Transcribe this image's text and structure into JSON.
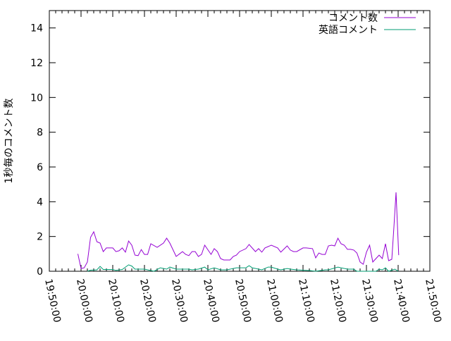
{
  "chart_data": {
    "type": "line",
    "title": "",
    "xlabel": "",
    "ylabel": "1秒毎のコメント数",
    "xlim": [
      "19:50:00",
      "21:50:00"
    ],
    "ylim": [
      0,
      15
    ],
    "x_ticks": [
      "19:50:00",
      "20:00:00",
      "20:10:00",
      "20:20:00",
      "20:30:00",
      "20:40:00",
      "20:50:00",
      "21:00:00",
      "21:10:00",
      "21:20:00",
      "21:30:00",
      "21:40:00",
      "21:50:00"
    ],
    "y_ticks": [
      "0",
      "2",
      "4",
      "6",
      "8",
      "10",
      "12",
      "14"
    ],
    "grid": false,
    "legend_position": "top-right",
    "series": [
      {
        "name": "コメント数",
        "color": "#9400d3",
        "points": [
          [
            "19:59:00",
            1.0
          ],
          [
            "20:00:00",
            0.16
          ],
          [
            "20:01:00",
            0.2
          ],
          [
            "20:02:00",
            0.53
          ],
          [
            "20:03:00",
            1.95
          ],
          [
            "20:04:00",
            2.27
          ],
          [
            "20:05:00",
            1.7
          ],
          [
            "20:06:00",
            1.62
          ],
          [
            "20:07:00",
            1.13
          ],
          [
            "20:08:00",
            1.34
          ],
          [
            "20:10:00",
            1.34
          ],
          [
            "20:11:00",
            1.13
          ],
          [
            "20:12:00",
            1.18
          ],
          [
            "20:13:00",
            1.34
          ],
          [
            "20:14:00",
            1.1
          ],
          [
            "20:15:00",
            1.74
          ],
          [
            "20:16:00",
            1.5
          ],
          [
            "20:17:00",
            0.93
          ],
          [
            "20:18:00",
            0.9
          ],
          [
            "20:19:00",
            1.25
          ],
          [
            "20:20:00",
            0.97
          ],
          [
            "20:21:00",
            0.97
          ],
          [
            "20:22:00",
            1.58
          ],
          [
            "20:24:00",
            1.38
          ],
          [
            "20:26:00",
            1.62
          ],
          [
            "20:27:00",
            1.9
          ],
          [
            "20:28:00",
            1.62
          ],
          [
            "20:30:00",
            0.85
          ],
          [
            "20:32:00",
            1.13
          ],
          [
            "20:33:00",
            0.97
          ],
          [
            "20:34:00",
            0.9
          ],
          [
            "20:35:00",
            1.13
          ],
          [
            "20:36:00",
            1.13
          ],
          [
            "20:37:00",
            0.85
          ],
          [
            "20:38:00",
            0.97
          ],
          [
            "20:39:00",
            1.5
          ],
          [
            "20:41:00",
            0.97
          ],
          [
            "20:42:00",
            1.3
          ],
          [
            "20:43:00",
            1.13
          ],
          [
            "20:44:00",
            0.73
          ],
          [
            "20:45:00",
            0.65
          ],
          [
            "20:47:00",
            0.65
          ],
          [
            "20:48:00",
            0.85
          ],
          [
            "20:49:00",
            0.93
          ],
          [
            "20:50:00",
            1.13
          ],
          [
            "20:52:00",
            1.3
          ],
          [
            "20:53:00",
            1.54
          ],
          [
            "20:55:00",
            1.13
          ],
          [
            "20:56:00",
            1.3
          ],
          [
            "20:57:00",
            1.1
          ],
          [
            "20:58:00",
            1.34
          ],
          [
            "21:00:00",
            1.5
          ],
          [
            "21:02:00",
            1.34
          ],
          [
            "21:03:00",
            1.1
          ],
          [
            "21:05:00",
            1.46
          ],
          [
            "21:06:00",
            1.22
          ],
          [
            "21:07:00",
            1.13
          ],
          [
            "21:08:00",
            1.13
          ],
          [
            "21:10:00",
            1.34
          ],
          [
            "21:11:00",
            1.34
          ],
          [
            "21:13:00",
            1.3
          ],
          [
            "21:14:00",
            0.77
          ],
          [
            "21:15:00",
            1.05
          ],
          [
            "21:16:00",
            0.97
          ],
          [
            "21:17:00",
            0.97
          ],
          [
            "21:18:00",
            1.46
          ],
          [
            "21:19:00",
            1.5
          ],
          [
            "21:20:00",
            1.46
          ],
          [
            "21:21:00",
            1.9
          ],
          [
            "21:22:00",
            1.58
          ],
          [
            "21:23:00",
            1.5
          ],
          [
            "21:24:00",
            1.26
          ],
          [
            "21:25:00",
            1.26
          ],
          [
            "21:26:00",
            1.22
          ],
          [
            "21:27:00",
            1.05
          ],
          [
            "21:28:00",
            0.53
          ],
          [
            "21:29:00",
            0.4
          ],
          [
            "21:30:00",
            1.1
          ],
          [
            "21:31:00",
            1.5
          ],
          [
            "21:32:00",
            0.53
          ],
          [
            "21:34:00",
            0.93
          ],
          [
            "21:35:00",
            0.73
          ],
          [
            "21:36:00",
            1.58
          ],
          [
            "21:37:00",
            0.61
          ],
          [
            "21:38:00",
            0.69
          ],
          [
            "21:38:40",
            2.55
          ],
          [
            "21:39:20",
            4.54
          ],
          [
            "21:40:10",
            0.93
          ]
        ]
      },
      {
        "name": "英語コメント",
        "color": "#009e73",
        "points": [
          [
            "20:02:00",
            0.0
          ],
          [
            "20:03:00",
            0.06
          ],
          [
            "20:05:00",
            0.08
          ],
          [
            "20:06:00",
            0.28
          ],
          [
            "20:07:00",
            0.1
          ],
          [
            "20:10:00",
            0.1
          ],
          [
            "20:11:00",
            0.05
          ],
          [
            "20:13:00",
            0.1
          ],
          [
            "20:15:00",
            0.37
          ],
          [
            "20:16:00",
            0.3
          ],
          [
            "20:17:00",
            0.12
          ],
          [
            "20:20:00",
            0.12
          ],
          [
            "20:23:00",
            0.0
          ],
          [
            "20:25:00",
            0.2
          ],
          [
            "20:27:00",
            0.12
          ],
          [
            "20:28:00",
            0.24
          ],
          [
            "20:30:00",
            0.12
          ],
          [
            "20:34:00",
            0.12
          ],
          [
            "20:35:00",
            0.08
          ],
          [
            "20:37:00",
            0.12
          ],
          [
            "20:39:00",
            0.24
          ],
          [
            "20:40:00",
            0.08
          ],
          [
            "20:42:00",
            0.2
          ],
          [
            "20:44:00",
            0.08
          ],
          [
            "20:46:00",
            0.08
          ],
          [
            "20:49:00",
            0.2
          ],
          [
            "20:52:00",
            0.2
          ],
          [
            "20:53:00",
            0.32
          ],
          [
            "20:54:00",
            0.2
          ],
          [
            "20:57:00",
            0.08
          ],
          [
            "20:59:00",
            0.24
          ],
          [
            "21:00:00",
            0.24
          ],
          [
            "21:02:00",
            0.12
          ],
          [
            "21:03:00",
            0.08
          ],
          [
            "21:05:00",
            0.16
          ],
          [
            "21:06:00",
            0.12
          ],
          [
            "21:08:00",
            0.08
          ],
          [
            "21:12:00",
            0.04
          ],
          [
            "21:14:00",
            0.0
          ],
          [
            "21:17:00",
            0.08
          ],
          [
            "21:18:00",
            0.08
          ],
          [
            "21:21:00",
            0.24
          ],
          [
            "21:22:00",
            0.2
          ],
          [
            "21:24:00",
            0.12
          ],
          [
            "21:26:00",
            0.12
          ],
          [
            "21:27:00",
            0.0
          ],
          [
            "21:30:00",
            0.0
          ],
          [
            "21:33:00",
            0.0
          ],
          [
            "21:34:00",
            0.12
          ],
          [
            "21:35:00",
            0.08
          ],
          [
            "21:36:00",
            0.2
          ],
          [
            "21:37:00",
            0.0
          ],
          [
            "21:39:00",
            0.12
          ],
          [
            "21:40:00",
            0.0
          ]
        ]
      }
    ]
  }
}
